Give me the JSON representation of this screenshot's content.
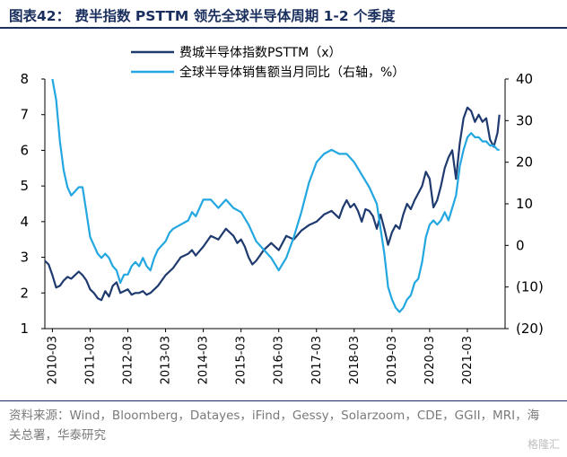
{
  "title": "图表42： 费半指数 PSTTM 领先全球半导体周期 1-2 个季度",
  "source": "资料来源：Wind，Bloomberg，Datayes，iFind，Gessy，Solarzoom，CDE，GGII，MRI，海关总署，华泰研究",
  "watermark": "格隆汇",
  "chart_data": {
    "type": "line",
    "x_ticks": [
      "2010-03",
      "2011-03",
      "2012-03",
      "2013-03",
      "2014-03",
      "2015-03",
      "2016-03",
      "2017-03",
      "2018-03",
      "2019-03",
      "2020-03",
      "2021-03"
    ],
    "y_left": {
      "ticks": [
        "1",
        "2",
        "3",
        "4",
        "5",
        "6",
        "7",
        "8"
      ],
      "ylim": [
        1,
        8
      ]
    },
    "y_right": {
      "ticks": [
        "(20)",
        "(10)",
        "0",
        "10",
        "20",
        "30",
        "40"
      ],
      "ylim": [
        -20,
        40
      ]
    },
    "series": [
      {
        "name": "费城半导体指数PSTTM（x）",
        "color": "#1f3a6e",
        "axis": "left",
        "x": [
          2010.0,
          2010.1,
          2010.2,
          2010.3,
          2010.4,
          2010.5,
          2010.6,
          2010.7,
          2010.8,
          2010.9,
          2011.0,
          2011.1,
          2011.2,
          2011.3,
          2011.4,
          2011.5,
          2011.6,
          2011.7,
          2011.8,
          2011.9,
          2012.0,
          2012.1,
          2012.2,
          2012.3,
          2012.4,
          2012.5,
          2012.6,
          2012.7,
          2012.8,
          2012.9,
          2013.0,
          2013.2,
          2013.4,
          2013.6,
          2013.8,
          2013.9,
          2014.0,
          2014.2,
          2014.4,
          2014.6,
          2014.8,
          2015.0,
          2015.1,
          2015.2,
          2015.3,
          2015.4,
          2015.5,
          2015.6,
          2015.7,
          2015.8,
          2016.0,
          2016.2,
          2016.4,
          2016.6,
          2016.8,
          2017.0,
          2017.2,
          2017.4,
          2017.6,
          2017.8,
          2017.9,
          2018.0,
          2018.1,
          2018.2,
          2018.3,
          2018.4,
          2018.5,
          2018.6,
          2018.7,
          2018.8,
          2018.9,
          2019.0,
          2019.1,
          2019.2,
          2019.3,
          2019.4,
          2019.5,
          2019.6,
          2019.7,
          2019.8,
          2019.9,
          2020.0,
          2020.1,
          2020.2,
          2020.3,
          2020.4,
          2020.5,
          2020.6,
          2020.7,
          2020.8,
          2020.9,
          2021.0,
          2021.1,
          2021.2,
          2021.3,
          2021.4,
          2021.5,
          2021.6,
          2021.7,
          2021.8,
          2021.9,
          2022.0,
          2022.05
        ],
        "y": [
          2.9,
          2.8,
          2.5,
          2.15,
          2.2,
          2.35,
          2.45,
          2.4,
          2.5,
          2.6,
          2.5,
          2.35,
          2.1,
          2.0,
          1.85,
          1.8,
          2.05,
          1.9,
          2.2,
          2.3,
          2.0,
          2.05,
          2.1,
          1.95,
          2.0,
          2.0,
          2.05,
          1.95,
          2.0,
          2.1,
          2.2,
          2.5,
          2.7,
          3.0,
          3.1,
          3.2,
          3.05,
          3.3,
          3.6,
          3.5,
          3.8,
          3.6,
          3.4,
          3.5,
          3.3,
          3.0,
          2.8,
          2.9,
          3.05,
          3.2,
          3.4,
          3.2,
          3.6,
          3.5,
          3.75,
          3.9,
          4.0,
          4.2,
          4.3,
          4.1,
          4.4,
          4.6,
          4.4,
          4.5,
          4.3,
          4.0,
          4.35,
          4.3,
          4.15,
          3.8,
          4.2,
          3.8,
          3.35,
          3.7,
          3.9,
          3.8,
          4.2,
          4.5,
          4.35,
          4.6,
          4.8,
          5.0,
          5.4,
          5.2,
          4.4,
          4.6,
          5.0,
          5.5,
          5.8,
          6.0,
          5.2,
          6.2,
          6.9,
          7.2,
          7.1,
          6.8,
          7.0,
          6.8,
          6.9,
          6.3,
          6.1,
          6.5,
          7.0
        ]
      },
      {
        "name": "全球半导体销售额当月同比（右轴，%）",
        "color": "#23a7e0",
        "axis": "right",
        "x": [
          2010.2,
          2010.3,
          2010.4,
          2010.5,
          2010.6,
          2010.7,
          2010.8,
          2010.9,
          2011.0,
          2011.1,
          2011.2,
          2011.3,
          2011.4,
          2011.5,
          2011.6,
          2011.7,
          2011.8,
          2011.9,
          2012.0,
          2012.1,
          2012.2,
          2012.3,
          2012.4,
          2012.5,
          2012.6,
          2012.7,
          2012.8,
          2012.9,
          2013.0,
          2013.1,
          2013.2,
          2013.3,
          2013.4,
          2013.6,
          2013.8,
          2013.9,
          2014.0,
          2014.2,
          2014.4,
          2014.6,
          2014.8,
          2015.0,
          2015.2,
          2015.4,
          2015.6,
          2015.8,
          2016.0,
          2016.2,
          2016.4,
          2016.6,
          2016.8,
          2017.0,
          2017.2,
          2017.4,
          2017.6,
          2017.8,
          2018.0,
          2018.2,
          2018.4,
          2018.6,
          2018.8,
          2019.0,
          2019.1,
          2019.2,
          2019.3,
          2019.4,
          2019.5,
          2019.6,
          2019.7,
          2019.8,
          2019.9,
          2020.0,
          2020.1,
          2020.2,
          2020.3,
          2020.4,
          2020.5,
          2020.6,
          2020.7,
          2020.8,
          2020.9,
          2021.0,
          2021.1,
          2021.2,
          2021.3,
          2021.4,
          2021.5,
          2021.6,
          2021.7,
          2021.8,
          2021.9,
          2022.0,
          2022.05
        ],
        "y": [
          40,
          35,
          25,
          18,
          14,
          12,
          13,
          14,
          14,
          8,
          2,
          0,
          -2,
          -3,
          -2,
          -3,
          -5,
          -6,
          -9,
          -7,
          -7,
          -5,
          -4,
          -5,
          -3,
          -5,
          -6,
          -3,
          -1,
          0,
          1,
          3,
          4,
          5,
          6,
          8,
          7,
          11,
          11,
          9,
          11,
          9,
          8,
          5,
          1,
          -1,
          -3,
          -6,
          -3,
          2,
          8,
          15,
          20,
          22,
          23,
          22,
          22,
          20,
          17,
          14,
          10,
          -2,
          -10,
          -13,
          -15,
          -16,
          -15,
          -13,
          -12,
          -9,
          -8,
          -4,
          2,
          5,
          6,
          5,
          6,
          8,
          6,
          9,
          12,
          19,
          23,
          26,
          27,
          26,
          26,
          25,
          25,
          24,
          24,
          23,
          23
        ]
      }
    ]
  }
}
